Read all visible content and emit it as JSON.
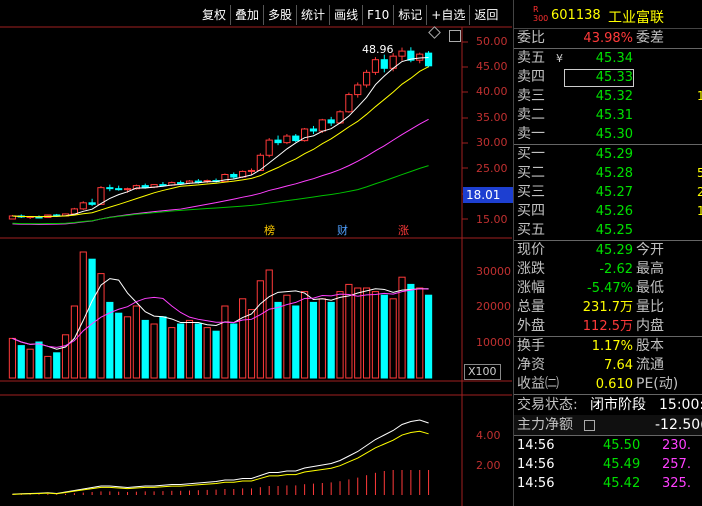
{
  "toolbar": [
    "复权",
    "叠加",
    "多股",
    "统计",
    "画线",
    "F10",
    "标记",
    "+自选",
    "返回"
  ],
  "price_axis": [
    "50.00",
    "45.00",
    "40.00",
    "35.00",
    "30.00",
    "25.00",
    "20.00",
    "15.00"
  ],
  "volume_axis": [
    "30000",
    "20000",
    "10000"
  ],
  "indicator_axis": [
    "4.00",
    "2.00"
  ],
  "current_price_tag": "18.01",
  "high_label": "48.96",
  "volume_unit": "X100",
  "markers": {
    "bang": "榜",
    "cai": "财",
    "zhang": "涨"
  },
  "stock": {
    "badge_top": "R",
    "badge_bottom": "300",
    "code": "601138",
    "name": "工业富联"
  },
  "colors": {
    "up": "#ff3a3a",
    "down": "#00ffff",
    "ma5": "#ffffff",
    "ma10": "#ffff00",
    "ma20": "#ff40ff",
    "ma60": "#00c000"
  },
  "order_book": {
    "weibi_label": "委比",
    "weibi_value": "43.98%",
    "weicha_label": "委差",
    "sell": [
      {
        "label": "卖五",
        "price": "45.34",
        "qty": "",
        "mark": "¥"
      },
      {
        "label": "卖四",
        "price": "45.33",
        "qty": ""
      },
      {
        "label": "卖三",
        "price": "45.32",
        "qty": "1"
      },
      {
        "label": "卖二",
        "price": "45.31",
        "qty": ""
      },
      {
        "label": "卖一",
        "price": "45.30",
        "qty": ""
      }
    ],
    "buy": [
      {
        "label": "买一",
        "price": "45.29",
        "qty": ""
      },
      {
        "label": "买二",
        "price": "45.28",
        "qty": "5"
      },
      {
        "label": "买三",
        "price": "45.27",
        "qty": "25"
      },
      {
        "label": "买四",
        "price": "45.26",
        "qty": "1"
      },
      {
        "label": "买五",
        "price": "45.25",
        "qty": ""
      }
    ]
  },
  "quote": [
    {
      "l": "现价",
      "v": "45.29",
      "vc": "green",
      "l2": "今开"
    },
    {
      "l": "涨跌",
      "v": "-2.62",
      "vc": "green",
      "l2": "最高"
    },
    {
      "l": "涨幅",
      "v": "-5.47%",
      "vc": "green",
      "l2": "最低"
    },
    {
      "l": "总量",
      "v": "231.7万",
      "vc": "yellow",
      "l2": "量比"
    },
    {
      "l": "外盘",
      "v": "112.5万",
      "vc": "red",
      "l2": "内盘"
    }
  ],
  "fundamentals": [
    {
      "l": "换手",
      "v": "1.17%",
      "l2": "股本"
    },
    {
      "l": "净资",
      "v": "7.64",
      "l2": "流通"
    },
    {
      "l": "收益㈡",
      "v": "0.610",
      "l2": "PE(动)"
    }
  ],
  "status": {
    "label": "交易状态:",
    "value": "闭市阶段",
    "time": "15:00:0"
  },
  "main_flow": {
    "label": "主力净额",
    "value": "-12.50("
  },
  "ticks": [
    {
      "t": "14:56",
      "p": "45.50",
      "q": "230."
    },
    {
      "t": "14:56",
      "p": "45.49",
      "q": "257."
    },
    {
      "t": "14:56",
      "p": "45.42",
      "q": "325."
    }
  ],
  "chart_data": {
    "type": "candlestick",
    "ylim": [
      15,
      52
    ],
    "candles": [
      [
        15.0,
        15.8,
        14.9,
        15.6
      ],
      [
        15.6,
        15.9,
        15.2,
        15.4
      ],
      [
        15.3,
        15.6,
        15.0,
        15.5
      ],
      [
        15.4,
        15.7,
        15.1,
        15.3
      ],
      [
        15.3,
        15.9,
        15.2,
        15.8
      ],
      [
        15.8,
        16.0,
        15.4,
        15.6
      ],
      [
        15.6,
        16.1,
        15.5,
        16.0
      ],
      [
        16.0,
        17.2,
        15.9,
        17.0
      ],
      [
        17.0,
        18.5,
        16.8,
        18.2
      ],
      [
        18.2,
        19.0,
        17.6,
        17.9
      ],
      [
        17.9,
        21.5,
        17.8,
        21.2
      ],
      [
        21.2,
        21.8,
        20.5,
        21.0
      ],
      [
        21.0,
        21.6,
        20.6,
        20.8
      ],
      [
        20.8,
        21.2,
        20.2,
        21.0
      ],
      [
        21.0,
        21.8,
        20.8,
        21.6
      ],
      [
        21.6,
        22.0,
        21.0,
        21.3
      ],
      [
        21.3,
        21.9,
        21.1,
        21.8
      ],
      [
        21.8,
        22.3,
        21.4,
        21.7
      ],
      [
        21.7,
        22.4,
        21.5,
        22.2
      ],
      [
        22.2,
        22.6,
        21.8,
        22.1
      ],
      [
        22.1,
        22.7,
        21.9,
        22.5
      ],
      [
        22.5,
        22.9,
        22.0,
        22.4
      ],
      [
        22.4,
        22.8,
        22.1,
        22.6
      ],
      [
        22.6,
        23.0,
        22.2,
        22.4
      ],
      [
        22.4,
        24.0,
        22.3,
        23.8
      ],
      [
        23.8,
        24.2,
        23.0,
        23.3
      ],
      [
        23.3,
        24.6,
        23.1,
        24.4
      ],
      [
        24.4,
        25.0,
        23.8,
        24.6
      ],
      [
        24.6,
        28.0,
        24.5,
        27.6
      ],
      [
        27.6,
        31.0,
        27.2,
        30.6
      ],
      [
        30.6,
        31.5,
        29.6,
        30.1
      ],
      [
        30.1,
        31.8,
        29.8,
        31.4
      ],
      [
        31.4,
        31.8,
        30.2,
        30.5
      ],
      [
        30.5,
        33.0,
        30.3,
        32.8
      ],
      [
        32.8,
        33.4,
        31.8,
        32.4
      ],
      [
        32.4,
        34.8,
        32.0,
        34.6
      ],
      [
        34.6,
        35.2,
        33.4,
        34.0
      ],
      [
        34.0,
        36.5,
        33.8,
        36.2
      ],
      [
        36.2,
        40.0,
        36.0,
        39.6
      ],
      [
        39.6,
        42.0,
        39.0,
        41.5
      ],
      [
        41.5,
        44.5,
        41.0,
        44.0
      ],
      [
        44.0,
        47.0,
        43.5,
        46.5
      ],
      [
        46.5,
        47.5,
        44.0,
        44.8
      ],
      [
        44.8,
        47.8,
        44.2,
        47.2
      ],
      [
        47.2,
        48.9,
        46.3,
        48.2
      ],
      [
        48.2,
        48.96,
        46.0,
        46.4
      ],
      [
        46.4,
        47.9,
        45.8,
        47.6
      ],
      [
        47.8,
        48.2,
        45.0,
        45.29
      ]
    ],
    "volume": [
      1100,
      900,
      800,
      1000,
      600,
      700,
      1200,
      2000,
      3500,
      3300,
      2900,
      2100,
      1800,
      1700,
      2000,
      1600,
      1500,
      1700,
      1400,
      1500,
      1600,
      1500,
      1400,
      1300,
      2000,
      1500,
      2200,
      1900,
      2700,
      3000,
      2100,
      2300,
      2000,
      2400,
      2100,
      2200,
      2100,
      2400,
      2600,
      2500,
      2500,
      2400,
      2300,
      2200,
      2800,
      2600,
      2500,
      2300
    ],
    "indicator": [
      0.05,
      0.08,
      0.1,
      0.12,
      0.15,
      0.1,
      0.2,
      0.3,
      0.4,
      0.5,
      0.6,
      0.6,
      0.55,
      0.5,
      0.55,
      0.6,
      0.6,
      0.65,
      0.7,
      0.7,
      0.75,
      0.8,
      0.85,
      0.9,
      1.0,
      1.0,
      1.1,
      1.1,
      1.3,
      1.5,
      1.5,
      1.6,
      1.6,
      1.8,
      1.9,
      2.0,
      2.1,
      2.3,
      2.6,
      2.9,
      3.3,
      3.7,
      4.0,
      4.3,
      4.7,
      4.9,
      5.0,
      4.8
    ]
  }
}
